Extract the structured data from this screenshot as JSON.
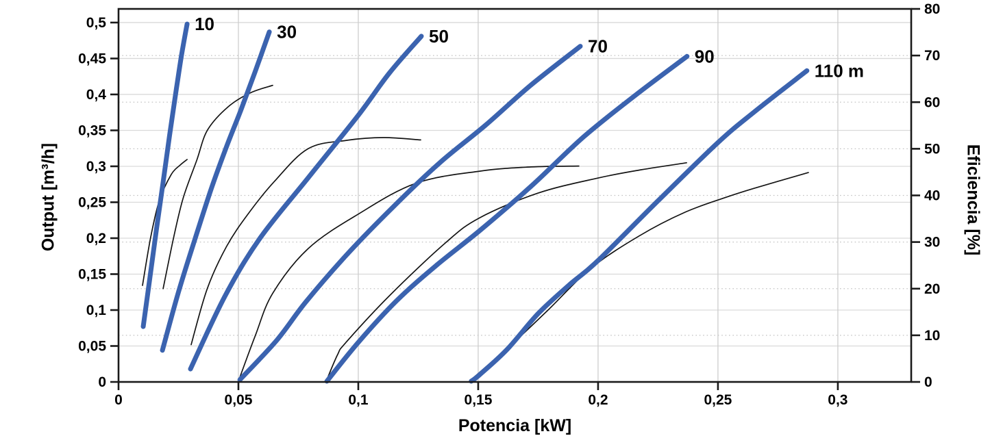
{
  "page": {
    "background": "#ffffff"
  },
  "chart_data": {
    "type": "line",
    "title": "",
    "xlabel": "Potencia [kW]",
    "ylabel_left": "Output [m³/h]",
    "ylabel_right": "Eficiencia [%]",
    "legend_position": "none",
    "grid": {
      "solid_horizontal": "left-axis majors",
      "solid_vertical": "x-axis majors",
      "dotted_horizontal": "right-axis majors"
    },
    "colors": {
      "head_curve": "#3b63af",
      "efficiency_curve": "#141414",
      "frame": "#1a1a1a",
      "grid_solid_h": "#d9d9d9",
      "grid_solid_v": "#cdcdcd",
      "grid_dotted": "#c2c2c2",
      "text": "#000000"
    },
    "axes": {
      "x": {
        "min": 0,
        "max": 0.3306,
        "ticks": [
          {
            "value": 0,
            "label": "0"
          },
          {
            "value": 0.05,
            "label": "0,05"
          },
          {
            "value": 0.1,
            "label": "0,1"
          },
          {
            "value": 0.15,
            "label": "0,15"
          },
          {
            "value": 0.2,
            "label": "0,2"
          },
          {
            "value": 0.25,
            "label": "0,25"
          },
          {
            "value": 0.3,
            "label": "0,3"
          }
        ]
      },
      "y_left": {
        "min": 0,
        "max": 0.519,
        "ticks": [
          {
            "value": 0,
            "label": "0"
          },
          {
            "value": 0.05,
            "label": "0,05"
          },
          {
            "value": 0.1,
            "label": "0,1"
          },
          {
            "value": 0.15,
            "label": "0,15"
          },
          {
            "value": 0.2,
            "label": "0,2"
          },
          {
            "value": 0.25,
            "label": "0,25"
          },
          {
            "value": 0.3,
            "label": "0,3"
          },
          {
            "value": 0.35,
            "label": "0,35"
          },
          {
            "value": 0.4,
            "label": "0,4"
          },
          {
            "value": 0.45,
            "label": "0,45"
          },
          {
            "value": 0.5,
            "label": "0,5"
          }
        ]
      },
      "y_right": {
        "min": 0,
        "max": 80,
        "ticks": [
          {
            "value": 0,
            "label": "0"
          },
          {
            "value": 10,
            "label": "10"
          },
          {
            "value": 20,
            "label": "20"
          },
          {
            "value": 30,
            "label": "30"
          },
          {
            "value": 40,
            "label": "40"
          },
          {
            "value": 50,
            "label": "50"
          },
          {
            "value": 60,
            "label": "60"
          },
          {
            "value": 70,
            "label": "70"
          },
          {
            "value": 80,
            "label": "80"
          }
        ]
      }
    },
    "head_curves": [
      {
        "name": "10",
        "label": "10",
        "points": [
          [
            0.0103,
            0.077
          ],
          [
            0.0131,
            0.145
          ],
          [
            0.0158,
            0.212
          ],
          [
            0.0186,
            0.278
          ],
          [
            0.0213,
            0.343
          ],
          [
            0.0241,
            0.407
          ],
          [
            0.0263,
            0.455
          ],
          [
            0.0286,
            0.498
          ]
        ]
      },
      {
        "name": "30",
        "label": "30",
        "points": [
          [
            0.0183,
            0.044
          ],
          [
            0.025,
            0.125
          ],
          [
            0.032,
            0.2
          ],
          [
            0.0385,
            0.267
          ],
          [
            0.045,
            0.327
          ],
          [
            0.051,
            0.378
          ],
          [
            0.057,
            0.432
          ],
          [
            0.0629,
            0.487
          ]
        ]
      },
      {
        "name": "50",
        "label": "50",
        "points": [
          [
            0.03,
            0.018
          ],
          [
            0.0445,
            0.12
          ],
          [
            0.059,
            0.2
          ],
          [
            0.0791,
            0.284
          ],
          [
            0.1,
            0.371
          ],
          [
            0.113,
            0.43
          ],
          [
            0.1263,
            0.481
          ]
        ]
      },
      {
        "name": "70",
        "label": "70",
        "points": [
          [
            0.0506,
            0.003
          ],
          [
            0.066,
            0.058
          ],
          [
            0.0783,
            0.112
          ],
          [
            0.096,
            0.18
          ],
          [
            0.115,
            0.245
          ],
          [
            0.134,
            0.305
          ],
          [
            0.153,
            0.357
          ],
          [
            0.172,
            0.413
          ],
          [
            0.1926,
            0.467
          ]
        ]
      },
      {
        "name": "90",
        "label": "90",
        "points": [
          [
            0.0869,
            0.001
          ],
          [
            0.1,
            0.055
          ],
          [
            0.116,
            0.113
          ],
          [
            0.1325,
            0.162
          ],
          [
            0.1506,
            0.2105
          ],
          [
            0.172,
            0.272
          ],
          [
            0.194,
            0.341
          ],
          [
            0.216,
            0.4
          ],
          [
            0.2371,
            0.453
          ]
        ]
      },
      {
        "name": "110",
        "label": "110 m",
        "points": [
          [
            0.1471,
            0.001
          ],
          [
            0.1506,
            0.01
          ],
          [
            0.162,
            0.045
          ],
          [
            0.175,
            0.095
          ],
          [
            0.188,
            0.135
          ],
          [
            0.1997,
            0.168
          ],
          [
            0.225,
            0.252
          ],
          [
            0.25,
            0.333
          ],
          [
            0.2649,
            0.375
          ],
          [
            0.2871,
            0.433
          ]
        ]
      }
    ],
    "efficiency_curves": [
      {
        "name": "eff-10",
        "points": [
          [
            0.01,
            20.7
          ],
          [
            0.0134,
            31
          ],
          [
            0.0171,
            39
          ],
          [
            0.022,
            44.5
          ],
          [
            0.0257,
            46.5
          ],
          [
            0.0286,
            47.7
          ]
        ]
      },
      {
        "name": "eff-30",
        "points": [
          [
            0.0186,
            20
          ],
          [
            0.023,
            31
          ],
          [
            0.027,
            39.5
          ],
          [
            0.0326,
            47.5
          ],
          [
            0.0371,
            54
          ],
          [
            0.0457,
            59
          ],
          [
            0.055,
            62
          ],
          [
            0.0643,
            63.6
          ]
        ]
      },
      {
        "name": "eff-50",
        "points": [
          [
            0.0303,
            8
          ],
          [
            0.037,
            20
          ],
          [
            0.045,
            29
          ],
          [
            0.054,
            36
          ],
          [
            0.065,
            43
          ],
          [
            0.079,
            50
          ],
          [
            0.095,
            51.8
          ],
          [
            0.1106,
            52.4
          ],
          [
            0.126,
            51.9
          ]
        ]
      },
      {
        "name": "eff-70",
        "points": [
          [
            0.0506,
            1
          ],
          [
            0.0571,
            10
          ],
          [
            0.0643,
            19
          ],
          [
            0.0791,
            28.6
          ],
          [
            0.1,
            36
          ],
          [
            0.124,
            42.6
          ],
          [
            0.1506,
            45.2
          ],
          [
            0.172,
            46.1
          ],
          [
            0.192,
            46.3
          ]
        ]
      },
      {
        "name": "eff-90",
        "points": [
          [
            0.0869,
            0.5
          ],
          [
            0.0914,
            5.9
          ],
          [
            0.0949,
            8.5
          ],
          [
            0.113,
            18.5
          ],
          [
            0.1363,
            29.8
          ],
          [
            0.1506,
            35.2
          ],
          [
            0.175,
            40.5
          ],
          [
            0.1997,
            43.7
          ],
          [
            0.218,
            45.5
          ],
          [
            0.2369,
            47.0
          ]
        ]
      },
      {
        "name": "eff-110",
        "points": [
          [
            0.1471,
            0.5
          ],
          [
            0.1649,
            8.5
          ],
          [
            0.1791,
            15.4
          ],
          [
            0.1971,
            24.4
          ],
          [
            0.2171,
            31.3
          ],
          [
            0.2363,
            36.4
          ],
          [
            0.2534,
            39.6
          ],
          [
            0.2649,
            41.5
          ],
          [
            0.2877,
            44.9
          ]
        ]
      }
    ]
  }
}
